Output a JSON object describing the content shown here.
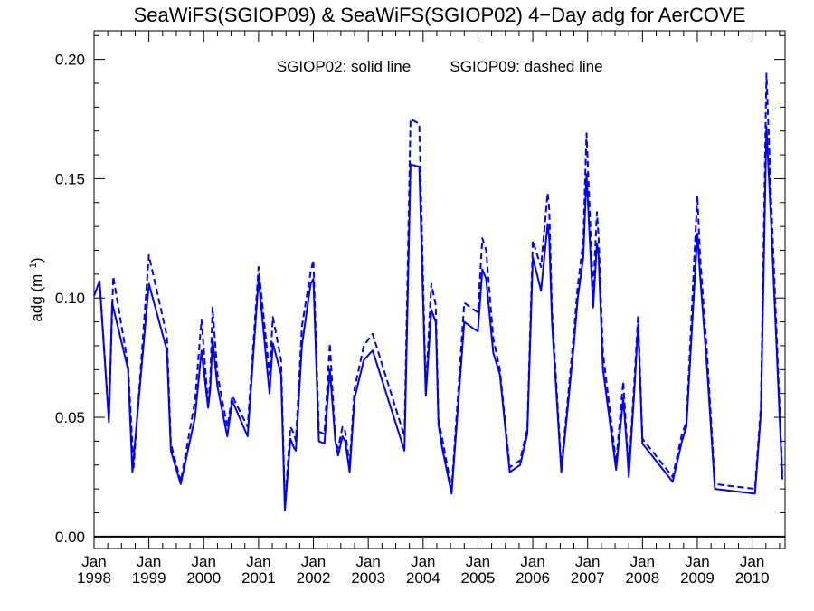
{
  "chart_data": {
    "type": "line",
    "title": "SeaWiFS(SGIOP09) & SeaWiFS(SGIOP02) 4−Day adg for AerCOVE",
    "annotation_solid": "SGIOP02: solid line",
    "annotation_dashed": "SGIOP09: dashed line",
    "ylabel_main": "adg (m",
    "ylabel_sup": "−1",
    "ylabel_close": ")",
    "ylim": [
      -0.005,
      0.212
    ],
    "xlim": [
      1998.0,
      2010.6
    ],
    "yticks": [
      0.0,
      0.05,
      0.1,
      0.15,
      0.2
    ],
    "ytick_labels": [
      "0.00",
      "0.05",
      "0.10",
      "0.15",
      "0.20"
    ],
    "xticks": [
      1998,
      1999,
      2000,
      2001,
      2002,
      2003,
      2004,
      2005,
      2006,
      2007,
      2008,
      2009,
      2010
    ],
    "xtick_month": "Jan",
    "xtick_years": [
      "1998",
      "1999",
      "2000",
      "2001",
      "2002",
      "2003",
      "2004",
      "2005",
      "2006",
      "2007",
      "2008",
      "2009",
      "2010"
    ],
    "zero_line": 0.0,
    "color": "#0000ff",
    "series": [
      {
        "name": "SGIOP02",
        "style": "solid",
        "x": [
          1998.0,
          1998.1,
          1998.27,
          1998.33,
          1998.62,
          1998.7,
          1999.0,
          1999.33,
          1999.4,
          1999.58,
          1999.84,
          1999.96,
          2000.08,
          2000.12,
          2000.16,
          2000.25,
          2000.43,
          2000.52,
          2000.8,
          2001.0,
          2001.2,
          2001.26,
          2001.41,
          2001.48,
          2001.58,
          2001.65,
          2001.68,
          2001.79,
          2001.95,
          2002.0,
          2002.1,
          2002.2,
          2002.3,
          2002.4,
          2002.45,
          2002.53,
          2002.58,
          2002.66,
          2002.75,
          2002.92,
          2003.08,
          2003.66,
          2003.77,
          2003.93,
          2004.05,
          2004.15,
          2004.23,
          2004.28,
          2004.35,
          2004.52,
          2004.75,
          2004.93,
          2005.0,
          2005.08,
          2005.15,
          2005.28,
          2005.4,
          2005.58,
          2005.77,
          2005.9,
          2006.0,
          2006.15,
          2006.27,
          2006.3,
          2006.35,
          2006.52,
          2006.62,
          2006.75,
          2006.82,
          2006.92,
          2006.98,
          2007.1,
          2007.17,
          2007.2,
          2007.28,
          2007.52,
          2007.65,
          2007.72,
          2007.75,
          2007.85,
          2007.92,
          2008.0,
          2008.55,
          2008.72,
          2008.8,
          2009.0,
          2009.05,
          2009.18,
          2009.32,
          2010.05,
          2010.16,
          2010.26,
          2010.35,
          2010.55
        ],
        "y": [
          0.101,
          0.107,
          0.048,
          0.098,
          0.07,
          0.027,
          0.106,
          0.078,
          0.036,
          0.022,
          0.05,
          0.078,
          0.054,
          0.062,
          0.083,
          0.063,
          0.042,
          0.057,
          0.042,
          0.108,
          0.06,
          0.081,
          0.068,
          0.011,
          0.041,
          0.037,
          0.036,
          0.08,
          0.106,
          0.108,
          0.04,
          0.039,
          0.07,
          0.04,
          0.034,
          0.042,
          0.04,
          0.027,
          0.058,
          0.074,
          0.078,
          0.036,
          0.156,
          0.155,
          0.059,
          0.095,
          0.09,
          0.047,
          0.037,
          0.018,
          0.09,
          0.087,
          0.086,
          0.112,
          0.108,
          0.077,
          0.068,
          0.027,
          0.03,
          0.043,
          0.117,
          0.103,
          0.131,
          0.125,
          0.09,
          0.027,
          0.05,
          0.081,
          0.1,
          0.117,
          0.152,
          0.096,
          0.123,
          0.118,
          0.07,
          0.028,
          0.058,
          0.036,
          0.025,
          0.061,
          0.089,
          0.039,
          0.023,
          0.04,
          0.046,
          0.127,
          0.11,
          0.07,
          0.02,
          0.018,
          0.052,
          0.172,
          0.13,
          0.024
        ]
      },
      {
        "name": "SGIOP09",
        "style": "dashed",
        "x": [
          1998.0,
          1998.1,
          1998.27,
          1998.35,
          1998.62,
          1998.72,
          1999.0,
          1999.33,
          1999.4,
          1999.58,
          1999.84,
          1999.96,
          2000.08,
          2000.12,
          2000.16,
          2000.25,
          2000.43,
          2000.52,
          2000.8,
          2001.0,
          2001.2,
          2001.26,
          2001.41,
          2001.48,
          2001.58,
          2001.65,
          2001.68,
          2001.79,
          2001.95,
          2002.0,
          2002.1,
          2002.2,
          2002.3,
          2002.4,
          2002.45,
          2002.53,
          2002.58,
          2002.66,
          2002.75,
          2002.92,
          2003.08,
          2003.66,
          2003.77,
          2003.93,
          2004.05,
          2004.15,
          2004.23,
          2004.28,
          2004.35,
          2004.52,
          2004.75,
          2004.93,
          2005.0,
          2005.08,
          2005.15,
          2005.28,
          2005.4,
          2005.58,
          2005.77,
          2005.9,
          2006.0,
          2006.15,
          2006.27,
          2006.3,
          2006.35,
          2006.52,
          2006.62,
          2006.75,
          2006.82,
          2006.92,
          2006.98,
          2007.1,
          2007.17,
          2007.2,
          2007.28,
          2007.52,
          2007.65,
          2007.72,
          2007.75,
          2007.85,
          2007.92,
          2008.0,
          2008.55,
          2008.72,
          2008.8,
          2009.0,
          2009.05,
          2009.18,
          2009.32,
          2010.05,
          2010.16,
          2010.26,
          2010.35,
          2010.55
        ],
        "y": [
          0.101,
          0.107,
          0.049,
          0.109,
          0.072,
          0.029,
          0.118,
          0.084,
          0.039,
          0.023,
          0.057,
          0.091,
          0.055,
          0.066,
          0.096,
          0.068,
          0.046,
          0.059,
          0.046,
          0.113,
          0.068,
          0.092,
          0.074,
          0.013,
          0.046,
          0.043,
          0.04,
          0.088,
          0.111,
          0.116,
          0.044,
          0.043,
          0.081,
          0.04,
          0.037,
          0.046,
          0.044,
          0.03,
          0.062,
          0.08,
          0.085,
          0.042,
          0.175,
          0.173,
          0.061,
          0.106,
          0.097,
          0.049,
          0.041,
          0.02,
          0.098,
          0.095,
          0.094,
          0.125,
          0.12,
          0.083,
          0.07,
          0.029,
          0.032,
          0.045,
          0.124,
          0.113,
          0.144,
          0.137,
          0.095,
          0.029,
          0.053,
          0.086,
          0.105,
          0.124,
          0.169,
          0.102,
          0.136,
          0.126,
          0.077,
          0.031,
          0.065,
          0.038,
          0.027,
          0.065,
          0.093,
          0.041,
          0.025,
          0.043,
          0.048,
          0.143,
          0.118,
          0.076,
          0.022,
          0.02,
          0.055,
          0.194,
          0.14,
          0.026
        ]
      }
    ]
  }
}
